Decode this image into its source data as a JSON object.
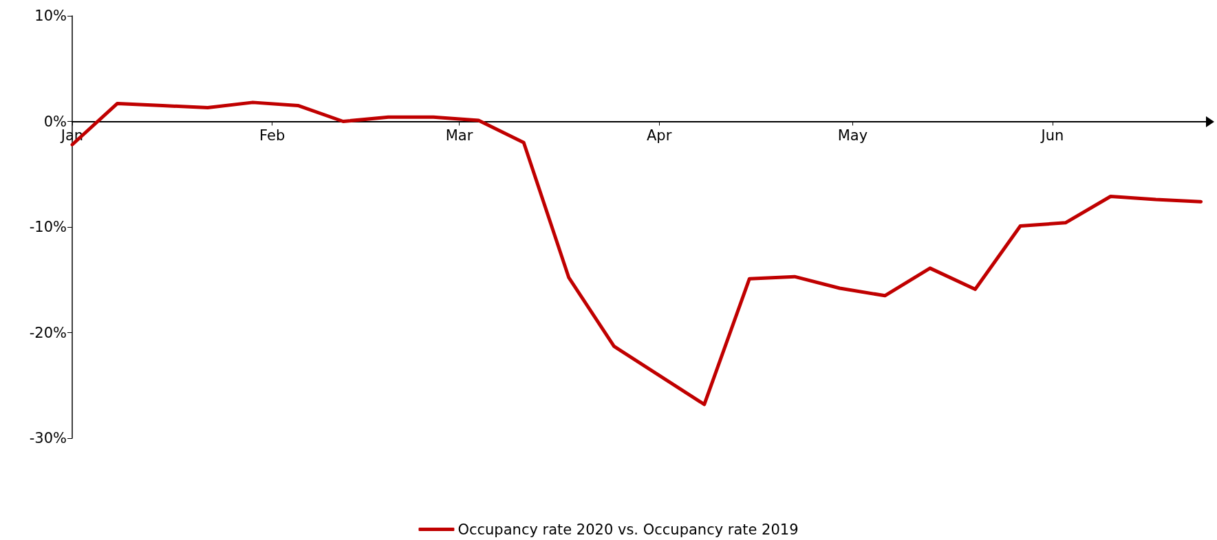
{
  "chart_data": {
    "type": "line",
    "x": [
      "2020-01-01",
      "2020-01-08",
      "2020-01-15",
      "2020-01-22",
      "2020-01-29",
      "2020-02-05",
      "2020-02-12",
      "2020-02-19",
      "2020-02-26",
      "2020-03-04",
      "2020-03-11",
      "2020-03-18",
      "2020-03-25",
      "2020-04-08",
      "2020-04-15",
      "2020-04-22",
      "2020-04-29",
      "2020-05-06",
      "2020-05-13",
      "2020-05-20",
      "2020-05-27",
      "2020-06-03",
      "2020-06-10",
      "2020-06-17",
      "2020-06-24"
    ],
    "series": [
      {
        "name": "Occupancy rate 2020 vs. Occupancy rate 2019",
        "color": "#c00000",
        "values": [
          -2.2,
          1.7,
          1.5,
          1.3,
          1.8,
          1.5,
          0.0,
          0.4,
          0.4,
          0.1,
          -2.0,
          -14.8,
          -21.3,
          -26.8,
          -14.9,
          -14.7,
          -15.8,
          -16.5,
          -13.9,
          -15.9,
          -9.9,
          -9.6,
          -7.1,
          -7.4,
          -7.6
        ]
      }
    ],
    "xlim": [
      "2020-01-01",
      "2020-06-25"
    ],
    "xticks": [
      {
        "value": "2020-01-01",
        "label": "Jan"
      },
      {
        "value": "2020-02-01",
        "label": "Feb"
      },
      {
        "value": "2020-03-01",
        "label": "Mar"
      },
      {
        "value": "2020-04-01",
        "label": "Apr"
      },
      {
        "value": "2020-05-01",
        "label": "May"
      },
      {
        "value": "2020-06-01",
        "label": "Jun"
      }
    ],
    "ylim": [
      -30,
      10
    ],
    "yticks": [
      {
        "value": 10,
        "label": "10%"
      },
      {
        "value": 0,
        "label": "0%"
      },
      {
        "value": -10,
        "label": "-10%"
      },
      {
        "value": -20,
        "label": "-20%"
      },
      {
        "value": -30,
        "label": "-30%"
      }
    ],
    "grid": false,
    "legend": "bottom",
    "marker": "none",
    "line_style": "solid"
  }
}
